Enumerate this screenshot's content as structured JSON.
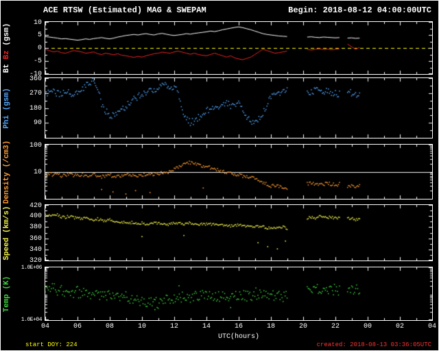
{
  "header": {
    "title": "ACE RTSW (Estimated) MAG & SWEPAM",
    "begin": "Begin: 2018-08-12 04:00:00UTC"
  },
  "footer": {
    "xlabel": "UTC(hours)",
    "start_doy": "start DOY: 224",
    "created": "created: 2018-08-13 03:36:05UTC"
  },
  "colors": {
    "bt": "#ffffff",
    "bz": "#ee2222",
    "phi": "#55a8ff",
    "density": "#ff9d33",
    "speed": "#f6f64a",
    "temp": "#3ed43e",
    "ref_yellow": "#ffff00",
    "created_red": "#ff3333",
    "doy_yellow": "#ffff00"
  },
  "chart_data": {
    "type": "scatter",
    "title": "ACE RTSW (Estimated) MAG & SWEPAM",
    "x_min": 4,
    "x_max": 28,
    "x_start": 4,
    "x_step": 0.25,
    "xlabel": "UTC(hours)",
    "x_ticks": [
      "04",
      "06",
      "08",
      "10",
      "12",
      "14",
      "16",
      "18",
      "20",
      "22",
      "00",
      "02",
      "04"
    ],
    "x_tick_hours": [
      4,
      6,
      8,
      10,
      12,
      14,
      16,
      18,
      20,
      22,
      24,
      26,
      28
    ],
    "panels": [
      {
        "name": "mag",
        "label_bt": "Bt",
        "label_bz": "Bz",
        "label_unit": "(gsm)",
        "ylim": [
          -10,
          10
        ],
        "line": true,
        "zero_line": 0,
        "minor_step": 2.5,
        "yticks": [
          {
            "v": 10,
            "label": "10"
          },
          {
            "v": 5,
            "label": "5"
          },
          {
            "v": 0,
            "label": "0"
          },
          {
            "v": -5,
            "label": "-5"
          },
          {
            "v": -10,
            "label": "-10"
          }
        ],
        "series": [
          {
            "name": "Bt",
            "color": "bt",
            "values": [
              4.4,
              4.2,
              4.0,
              3.8,
              3.5,
              3.6,
              3.4,
              3.2,
              3.0,
              3.2,
              3.5,
              3.3,
              3.6,
              3.8,
              4.0,
              3.7,
              3.5,
              3.8,
              4.2,
              4.5,
              4.8,
              5.0,
              5.2,
              5.0,
              5.3,
              5.5,
              5.2,
              5.0,
              5.4,
              5.6,
              5.3,
              5.0,
              4.8,
              5.0,
              5.2,
              5.5,
              5.3,
              5.6,
              5.8,
              6.0,
              6.2,
              6.5,
              6.3,
              6.6,
              7.0,
              7.3,
              7.6,
              7.9,
              8.1,
              7.8,
              7.4,
              7.0,
              6.5,
              6.0,
              5.5,
              5.2,
              5.0,
              4.8,
              4.6,
              4.5,
              4.4,
              null,
              null,
              null,
              null,
              4.2,
              4.3,
              4.1,
              4.0,
              4.2,
              4.1,
              4.0,
              3.9,
              4.0,
              null,
              3.8,
              3.9,
              3.7,
              3.8
            ]
          },
          {
            "name": "Bz",
            "color": "bz",
            "values": [
              -0.5,
              -1.0,
              -1.5,
              -1.2,
              -1.8,
              -2.0,
              -1.5,
              -1.0,
              -1.2,
              -1.5,
              -2.0,
              -1.8,
              -1.5,
              -2.2,
              -2.5,
              -2.0,
              -2.3,
              -2.6,
              -2.2,
              -2.8,
              -3.0,
              -3.3,
              -3.6,
              -3.2,
              -3.5,
              -3.0,
              -2.6,
              -2.2,
              -2.0,
              -1.6,
              -1.8,
              -2.0,
              -1.5,
              -1.2,
              -1.6,
              -2.0,
              -2.4,
              -2.0,
              -2.5,
              -2.8,
              -3.0,
              -2.5,
              -2.0,
              -2.5,
              -3.0,
              -3.5,
              -3.0,
              -3.8,
              -4.2,
              -4.5,
              -4.0,
              -3.5,
              -2.5,
              -1.5,
              -0.5,
              -1.0,
              -1.5,
              -2.0,
              -1.8,
              -1.5,
              -1.2,
              null,
              null,
              null,
              null,
              -0.5,
              -0.8,
              -0.5,
              -0.3,
              -0.6,
              -0.4,
              -0.7,
              -0.5,
              -0.3,
              null,
              1.5,
              0.5,
              -0.5,
              0.2
            ]
          }
        ]
      },
      {
        "name": "phi",
        "ylabel": "Phi (gsm)",
        "label_color": "phi",
        "ylim": [
          0,
          360
        ],
        "jitter": 10,
        "minor_step": 45,
        "yticks": [
          {
            "v": 360,
            "label": "360"
          },
          {
            "v": 270,
            "label": "270"
          },
          {
            "v": 180,
            "label": "180"
          },
          {
            "v": 90,
            "label": "90"
          }
        ],
        "series": [
          {
            "name": "Phi",
            "color": "phi",
            "values": [
              275,
              270,
              280,
              265,
              270,
              285,
              275,
              260,
              270,
              290,
              310,
              330,
              350,
              300,
              200,
              160,
              140,
              130,
              150,
              170,
              190,
              210,
              230,
              250,
              260,
              270,
              280,
              290,
              300,
              310,
              320,
              310,
              300,
              280,
              150,
              110,
              95,
              100,
              120,
              140,
              160,
              180,
              170,
              190,
              200,
              210,
              190,
              200,
              210,
              180,
              120,
              95,
              90,
              110,
              150,
              200,
              240,
              260,
              270,
              280,
              290,
              null,
              null,
              null,
              null,
              270,
              280,
              290,
              285,
              275,
              280,
              270,
              265,
              270,
              null,
              280,
              270,
              260,
              270
            ]
          }
        ]
      },
      {
        "name": "density",
        "ylabel": "Density (/cm3)",
        "label_color": "density",
        "ylim": [
          1,
          100
        ],
        "scale": "log",
        "jitter": 5,
        "ref_line": 10,
        "yticks": [
          {
            "v": 100,
            "label": "100"
          },
          {
            "v": 10,
            "label": "10"
          }
        ],
        "outliers": [
          [
            7.5,
            2.2
          ],
          [
            8.2,
            1.8
          ],
          [
            9.0,
            1.5
          ],
          [
            9.6,
            2.0
          ],
          [
            10.5,
            1.7
          ],
          [
            13.8,
            2.5
          ]
        ],
        "series": [
          {
            "name": "Density",
            "color": "density",
            "values": [
              8,
              8.5,
              7.5,
              8,
              7,
              7.5,
              8,
              7,
              7.5,
              8,
              7,
              7.5,
              8,
              7,
              6.5,
              7,
              7.5,
              7,
              6.5,
              7,
              7.5,
              8,
              7.5,
              7,
              7.5,
              8,
              8.5,
              8,
              8.5,
              9,
              9.5,
              10,
              12,
              15,
              18,
              20,
              22,
              20,
              18,
              16,
              15,
              14,
              13,
              12,
              10,
              9,
              8.5,
              8,
              7.5,
              7,
              6.5,
              6,
              5.5,
              5,
              4,
              3.5,
              3,
              3.2,
              3,
              2.8,
              2.5,
              null,
              null,
              null,
              null,
              3.5,
              3.8,
              3.5,
              3.2,
              3.5,
              3.8,
              3.5,
              3.2,
              3.5,
              null,
              3,
              3.2,
              2.8,
              3
            ]
          }
        ]
      },
      {
        "name": "speed",
        "ylabel": "Speed (km/s)",
        "label_color": "speed",
        "ylim": [
          320,
          420
        ],
        "jitter": 4,
        "minor_step": 10,
        "yticks": [
          {
            "v": 420,
            "label": "420"
          },
          {
            "v": 400,
            "label": "400"
          },
          {
            "v": 380,
            "label": "380"
          },
          {
            "v": 360,
            "label": "360"
          },
          {
            "v": 340,
            "label": "340"
          },
          {
            "v": 320,
            "label": "320"
          }
        ],
        "outliers": [
          [
            10.0,
            363
          ],
          [
            12.6,
            365
          ],
          [
            17.2,
            352
          ],
          [
            17.8,
            345
          ],
          [
            18.4,
            341
          ],
          [
            18.9,
            355
          ]
        ],
        "series": [
          {
            "name": "Speed",
            "color": "speed",
            "values": [
              403,
              401,
              400,
              402,
              399,
              398,
              400,
              397,
              396,
              395,
              396,
              394,
              393,
              395,
              392,
              391,
              393,
              390,
              391,
              389,
              390,
              388,
              389,
              387,
              388,
              386,
              387,
              388,
              386,
              387,
              385,
              386,
              387,
              388,
              386,
              387,
              388,
              386,
              385,
              386,
              385,
              386,
              384,
              385,
              383,
              384,
              382,
              383,
              384,
              382,
              383,
              381,
              382,
              380,
              381,
              379,
              380,
              378,
              379,
              380,
              378,
              null,
              null,
              null,
              null,
              396,
              398,
              397,
              399,
              398,
              397,
              398,
              396,
              397,
              null,
              395,
              396,
              394,
              395
            ]
          }
        ]
      },
      {
        "name": "temp",
        "ylabel": "Temp (K)",
        "label_color": "temp",
        "ylim": [
          10000,
          1000000
        ],
        "scale": "log",
        "jitter": 16,
        "small_ticks": true,
        "yticks": [
          {
            "v": 1000000,
            "label": "1.0E+06"
          },
          {
            "v": 10000,
            "label": "1.0E+04"
          }
        ],
        "outliers": [
          [
            10.8,
            25000
          ],
          [
            12.3,
            200000
          ],
          [
            15.5,
            30000
          ]
        ],
        "series": [
          {
            "name": "Temp",
            "color": "temp",
            "values": [
              150000,
              130000,
              160000,
              120000,
              140000,
              110000,
              130000,
              100000,
              120000,
              90000,
              110000,
              100000,
              95000,
              110000,
              85000,
              90000,
              100000,
              80000,
              90000,
              75000,
              80000,
              65000,
              70000,
              60000,
              55000,
              50000,
              45000,
              50000,
              42000,
              55000,
              60000,
              50000,
              65000,
              70000,
              80000,
              60000,
              75000,
              90000,
              70000,
              85000,
              100000,
              75000,
              90000,
              80000,
              95000,
              70000,
              85000,
              100000,
              80000,
              90000,
              75000,
              85000,
              110000,
              90000,
              100000,
              80000,
              95000,
              70000,
              85000,
              75000,
              80000,
              null,
              null,
              null,
              null,
              120000,
              140000,
              130000,
              150000,
              130000,
              160000,
              140000,
              150000,
              130000,
              null,
              160000,
              140000,
              150000,
              130000
            ]
          }
        ]
      }
    ]
  }
}
